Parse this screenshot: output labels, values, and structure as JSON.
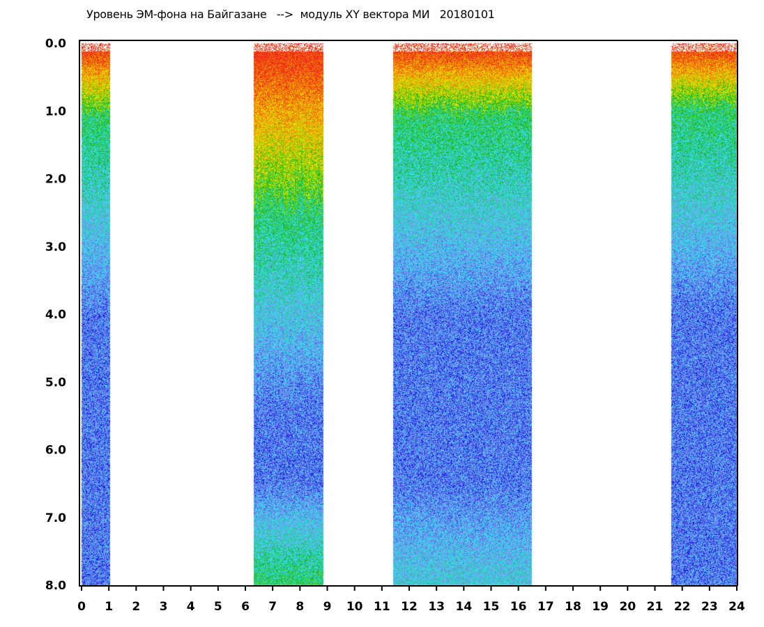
{
  "chart_data": {
    "type": "heatmap",
    "title": "Уровень ЭМ-фона на Байгазане   -->  модуль XY вектора МИ   20180101",
    "xlabel": "",
    "ylabel": "",
    "xlim": [
      0,
      24
    ],
    "ylim": [
      0,
      8.0
    ],
    "y_inverted": true,
    "x_ticks": [
      "0",
      "1",
      "2",
      "3",
      "4",
      "5",
      "6",
      "7",
      "8",
      "9",
      "10",
      "11",
      "12",
      "13",
      "14",
      "15",
      "16",
      "17",
      "18",
      "19",
      "20",
      "21",
      "22",
      "23",
      "24"
    ],
    "y_ticks": [
      "0.0",
      "1.0",
      "2.0",
      "3.0",
      "4.0",
      "5.0",
      "6.0",
      "7.0",
      "8.0"
    ],
    "grid": false,
    "colorscale": [
      "#0000e0",
      "#8090f0",
      "#30e8f0",
      "#10b010",
      "#f0f000",
      "#f08000",
      "#f02020"
    ],
    "segments": [
      {
        "x_start": 0.0,
        "x_end": 1.05,
        "hot_depth": 1.0,
        "bottom_boost": 0
      },
      {
        "x_start": 6.3,
        "x_end": 8.85,
        "hot_depth": 2.3,
        "bottom_boost": 1
      },
      {
        "x_start": 11.4,
        "x_end": 16.5,
        "hot_depth": 1.0,
        "bottom_boost": 0.5
      },
      {
        "x_start": 21.6,
        "x_end": 24.0,
        "hot_depth": 0.9,
        "bottom_boost": 0
      }
    ]
  }
}
